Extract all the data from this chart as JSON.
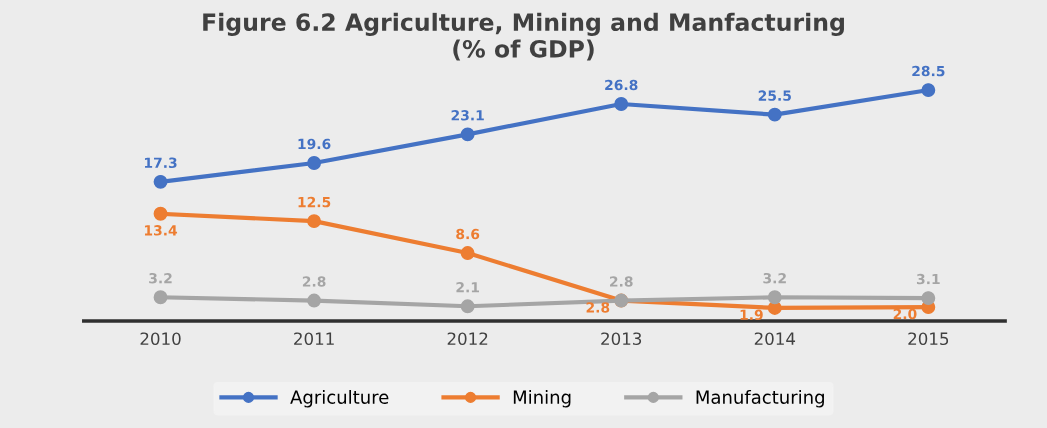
{
  "chart_data": {
    "type": "line",
    "title": "Figure 6.2 Agriculture, Mining and Manfacturing\n(% of GDP)",
    "categories": [
      "2010",
      "2011",
      "2012",
      "2013",
      "2014",
      "2015"
    ],
    "series": [
      {
        "name": "Agriculture",
        "color": "#4472c4",
        "values": [
          17.3,
          19.6,
          23.1,
          26.8,
          25.5,
          28.5
        ],
        "value_labels": [
          "17.3",
          "19.6",
          "23.1",
          "26.8",
          "25.5",
          "28.5"
        ]
      },
      {
        "name": "Mining",
        "color": "#ed7d31",
        "values": [
          13.4,
          12.5,
          8.6,
          2.8,
          1.9,
          2.0
        ],
        "value_labels": [
          "13.4",
          "12.5",
          "8.6",
          "2.8",
          "1.9",
          "2.0"
        ]
      },
      {
        "name": "Manufacturing",
        "color": "#a5a5a5",
        "values": [
          3.2,
          2.8,
          2.1,
          2.8,
          3.2,
          3.1
        ],
        "value_labels": [
          "3.2",
          "2.8",
          "2.1",
          "2.8",
          "3.2",
          "3.1"
        ]
      }
    ],
    "tick_labels": "x",
    "legend": "bottom",
    "marker": "circle",
    "line_style": "solid"
  }
}
